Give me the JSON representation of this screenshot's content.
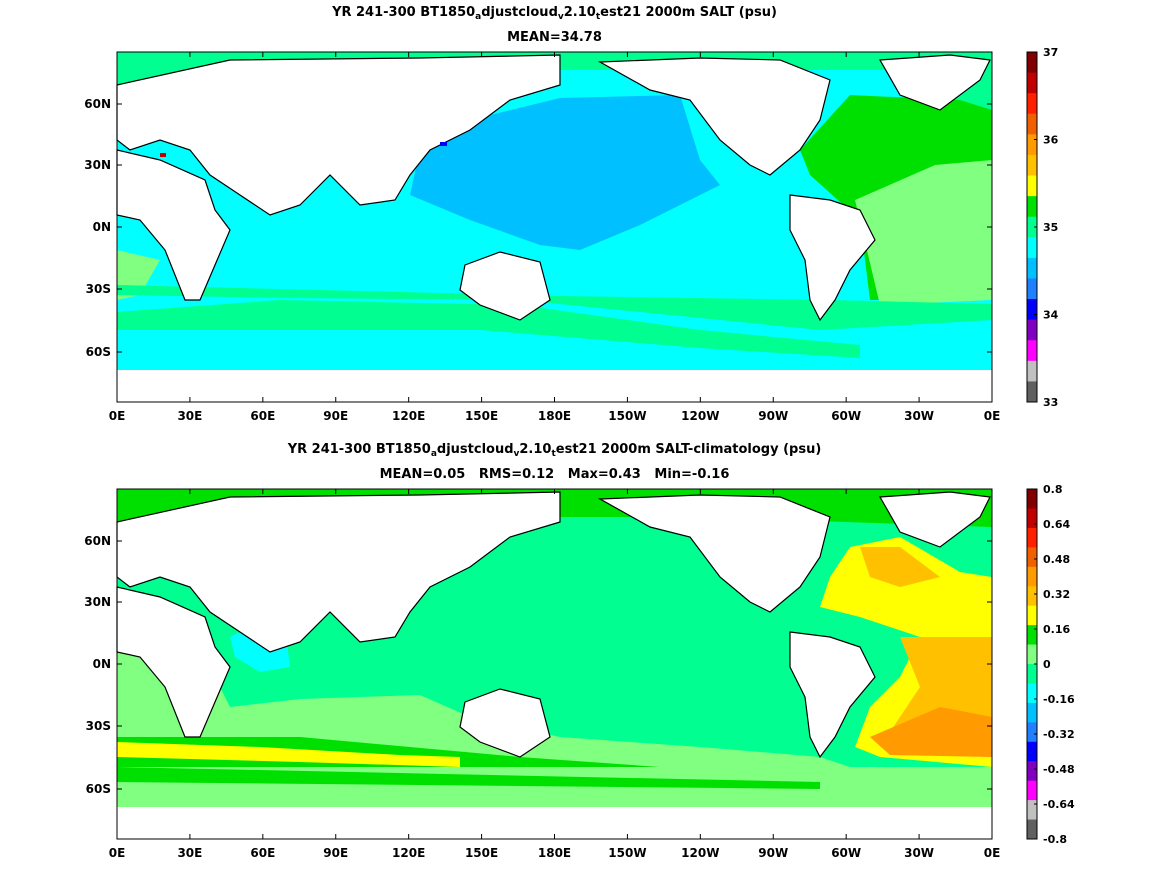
{
  "panels": [
    {
      "title_main": "YR 241-300 BT1850",
      "title_sub1": "a",
      "title_mid": "djustcloud",
      "title_sub2": "v",
      "title_mid2": "2.10",
      "title_sub3": "t",
      "title_end": "est21 2000m SALT (psu)",
      "stats": "MEAN=34.78",
      "colorbar": {
        "labels": [
          "37",
          "36",
          "35",
          "34",
          "33"
        ],
        "colors": [
          "#800000",
          "#c00000",
          "#ff2000",
          "#f06000",
          "#ff9a00",
          "#ffc000",
          "#ffff00",
          "#00e000",
          "#00ff90",
          "#00ffff",
          "#00c0ff",
          "#2080ff",
          "#0000ff",
          "#8000c0",
          "#ff00ff",
          "#c0c0c0",
          "#606060"
        ]
      }
    },
    {
      "title_main": "YR 241-300 BT1850",
      "title_sub1": "a",
      "title_mid": "djustcloud",
      "title_sub2": "v",
      "title_mid2": "2.10",
      "title_sub3": "t",
      "title_end": "est21 2000m SALT-climatology (psu)",
      "stats": "MEAN=0.05   RMS=0.12   Max=0.43   Min=-0.16",
      "colorbar": {
        "labels": [
          "0.8",
          "0.64",
          "0.48",
          "0.32",
          "0.16",
          "0",
          "-0.16",
          "-0.32",
          "-0.48",
          "-0.64",
          "-0.8"
        ],
        "colors": [
          "#800000",
          "#c00000",
          "#ff2000",
          "#f06000",
          "#ff9a00",
          "#ffc000",
          "#ffff00",
          "#00e000",
          "#80ff80",
          "#00ff90",
          "#00ffff",
          "#00c0ff",
          "#2080ff",
          "#0000ff",
          "#8000c0",
          "#ff00ff",
          "#c0c0c0",
          "#606060"
        ]
      }
    }
  ],
  "axes": {
    "x_ticks": [
      "0E",
      "30E",
      "60E",
      "90E",
      "120E",
      "150E",
      "180E",
      "150W",
      "120W",
      "90W",
      "60W",
      "30W",
      "0E"
    ],
    "y_ticks": [
      "60N",
      "30N",
      "0N",
      "30S",
      "60S"
    ]
  }
}
